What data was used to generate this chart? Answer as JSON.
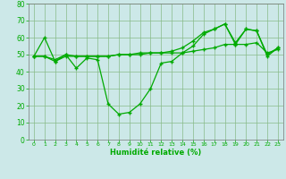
{
  "x": [
    0,
    1,
    2,
    3,
    4,
    5,
    6,
    7,
    8,
    9,
    10,
    11,
    12,
    13,
    14,
    15,
    16,
    17,
    18,
    19,
    20,
    21,
    22,
    23
  ],
  "line1": [
    49,
    60,
    46,
    50,
    42,
    48,
    47,
    21,
    15,
    16,
    21,
    30,
    45,
    46,
    51,
    55,
    62,
    65,
    68,
    56,
    65,
    64,
    49,
    54
  ],
  "line2": [
    49,
    49,
    46,
    49,
    49,
    49,
    49,
    49,
    50,
    50,
    50,
    51,
    51,
    51,
    51,
    52,
    53,
    54,
    56,
    56,
    56,
    57,
    51,
    53
  ],
  "line3": [
    49,
    49,
    47,
    50,
    49,
    49,
    49,
    49,
    50,
    50,
    51,
    51,
    51,
    52,
    54,
    58,
    63,
    65,
    68,
    57,
    65,
    64,
    50,
    54
  ],
  "background_color": "#cce8e8",
  "grid_color": "#88bb88",
  "line_color": "#00aa00",
  "xlabel": "Humidité relative (%)",
  "ylim": [
    0,
    80
  ],
  "xlim": [
    -0.5,
    23.5
  ],
  "yticks": [
    0,
    10,
    20,
    30,
    40,
    50,
    60,
    70,
    80
  ],
  "xticks": [
    0,
    1,
    2,
    3,
    4,
    5,
    6,
    7,
    8,
    9,
    10,
    11,
    12,
    13,
    14,
    15,
    16,
    17,
    18,
    19,
    20,
    21,
    22,
    23
  ]
}
